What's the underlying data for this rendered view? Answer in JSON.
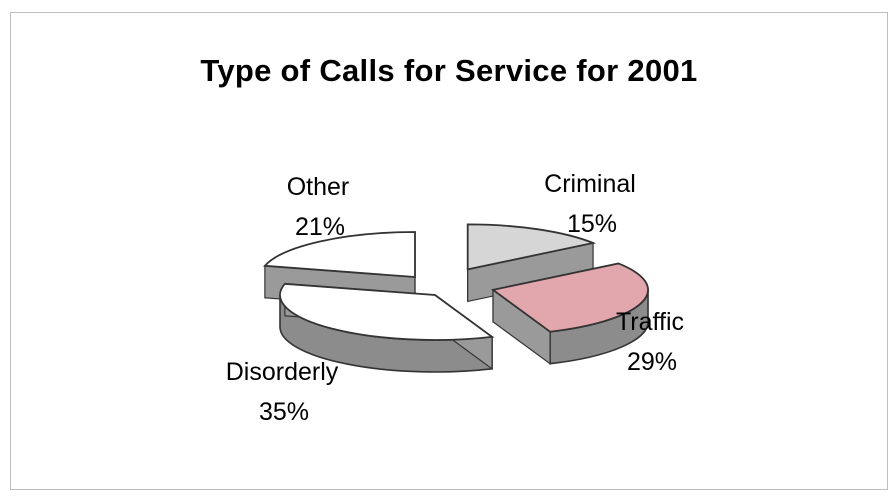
{
  "chart_data": {
    "type": "pie",
    "title": "Type of Calls for Service for 2001",
    "slices": [
      {
        "name": "Criminal",
        "value": 15,
        "label": "15%",
        "color": "#d6d6d6",
        "exploded": true
      },
      {
        "name": "Traffic",
        "value": 29,
        "label": "29%",
        "color": "#e2a6ad",
        "exploded": true
      },
      {
        "name": "Disorderly",
        "value": 35,
        "label": "35%",
        "color": "#ffffff",
        "exploded": false
      },
      {
        "name": "Other",
        "value": 21,
        "label": "21%",
        "color": "#ffffff",
        "exploded": false
      }
    ],
    "side_color": "#8c8c8c",
    "legend": "none"
  }
}
